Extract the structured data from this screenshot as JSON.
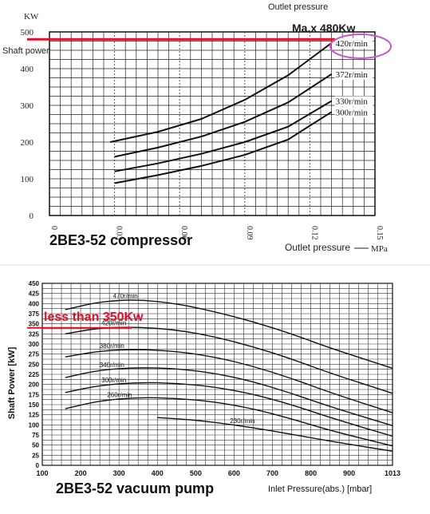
{
  "chart_data": [
    {
      "type": "line",
      "title": "2BE3-52  compressor",
      "top_label": "Outlet pressure",
      "xlabel": "Outlet pressure",
      "x_unit": "MPa",
      "ylabel": "Shaft power",
      "y_unit": "KW",
      "xlim": [
        0,
        0.15
      ],
      "ylim": [
        0,
        500
      ],
      "x_ticks": [
        "0",
        "0.03",
        "0.06",
        "0.09",
        "0.12",
        "0.15"
      ],
      "x_tick_values": [
        0,
        0.03,
        0.06,
        0.09,
        0.12,
        0.15
      ],
      "y_ticks": [
        "0",
        "100",
        "200",
        "300",
        "400",
        "500"
      ],
      "y_tick_values": [
        0,
        100,
        200,
        300,
        400,
        500
      ],
      "grid": true,
      "series": [
        {
          "name": "420r/min",
          "x": [
            0.028,
            0.05,
            0.07,
            0.09,
            0.11,
            0.13
          ],
          "y": [
            200,
            228,
            263,
            315,
            382,
            470
          ]
        },
        {
          "name": "372r/min",
          "x": [
            0.03,
            0.05,
            0.07,
            0.09,
            0.11,
            0.13
          ],
          "y": [
            160,
            185,
            215,
            255,
            308,
            385
          ]
        },
        {
          "name": "330r/min",
          "x": [
            0.03,
            0.05,
            0.07,
            0.09,
            0.11,
            0.13
          ],
          "y": [
            120,
            142,
            168,
            200,
            242,
            312
          ]
        },
        {
          "name": "300r/min",
          "x": [
            0.03,
            0.05,
            0.07,
            0.09,
            0.11,
            0.13
          ],
          "y": [
            88,
            110,
            135,
            165,
            207,
            282
          ]
        }
      ],
      "annotations": [
        {
          "text": "Ma.x 480Kw",
          "value": 480,
          "color": "#e0102a"
        }
      ],
      "highlight_color": "#e0102a",
      "circle_color": "#cc55cc"
    },
    {
      "type": "line",
      "title": "2BE3-52 vacuum pump",
      "xlabel": "Inlet Pressure(abs.)  [mbar]",
      "ylabel": "Shaft Power [kW]",
      "xlim": [
        100,
        1013
      ],
      "ylim": [
        0,
        450
      ],
      "x_ticks": [
        "100",
        "200",
        "300",
        "400",
        "500",
        "600",
        "700",
        "800",
        "900",
        "1013"
      ],
      "x_tick_values": [
        100,
        200,
        300,
        400,
        500,
        600,
        700,
        800,
        900,
        1013
      ],
      "y_ticks": [
        "0",
        "25",
        "50",
        "75",
        "100",
        "125",
        "150",
        "175",
        "200",
        "225",
        "250",
        "275",
        "300",
        "325",
        "350",
        "375",
        "400",
        "425",
        "450"
      ],
      "y_tick_values": [
        0,
        25,
        50,
        75,
        100,
        125,
        150,
        175,
        200,
        225,
        250,
        275,
        300,
        325,
        350,
        375,
        400,
        425,
        450
      ],
      "grid": true,
      "series": [
        {
          "name": "470r/min",
          "x": [
            160,
            250,
            350,
            450,
            550,
            650,
            750,
            850,
            1013
          ],
          "y": [
            385,
            405,
            410,
            400,
            380,
            355,
            325,
            290,
            240
          ]
        },
        {
          "name": "420r/min",
          "x": [
            160,
            250,
            350,
            450,
            550,
            650,
            750,
            850,
            1013
          ],
          "y": [
            325,
            340,
            342,
            335,
            318,
            293,
            263,
            228,
            178
          ]
        },
        {
          "name": "380r/min",
          "x": [
            160,
            250,
            350,
            450,
            550,
            650,
            750,
            850,
            1013
          ],
          "y": [
            268,
            283,
            287,
            282,
            268,
            245,
            215,
            180,
            130
          ]
        },
        {
          "name": "340r/min",
          "x": [
            160,
            250,
            350,
            450,
            550,
            650,
            750,
            850,
            1013
          ],
          "y": [
            217,
            236,
            242,
            239,
            228,
            207,
            178,
            145,
            98
          ]
        },
        {
          "name": "300r/min",
          "x": [
            160,
            250,
            350,
            450,
            550,
            650,
            750,
            850,
            1013
          ],
          "y": [
            180,
            198,
            205,
            203,
            194,
            176,
            150,
            118,
            72
          ]
        },
        {
          "name": "260r/min",
          "x": [
            160,
            250,
            350,
            450,
            550,
            650,
            750,
            850,
            1013
          ],
          "y": [
            140,
            160,
            168,
            166,
            157,
            140,
            115,
            86,
            48
          ]
        },
        {
          "name": "230r/min",
          "x": [
            400,
            500,
            600,
            700,
            800,
            900,
            1013
          ],
          "y": [
            118,
            112,
            100,
            85,
            68,
            52,
            35
          ]
        }
      ],
      "annotations": [
        {
          "text": "less than 350Kw",
          "value": 340,
          "color": "#e0102a"
        }
      ],
      "highlight_color": "#e0102a"
    }
  ]
}
